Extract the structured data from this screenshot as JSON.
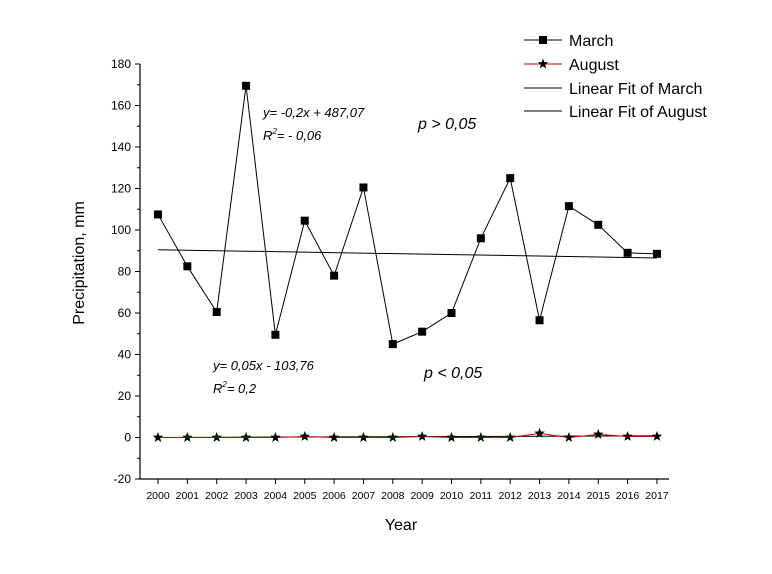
{
  "chart_data": {
    "type": "line",
    "title": "",
    "xlabel": "Year",
    "ylabel": "Precipitation,  mm",
    "ylim": [
      -20,
      180
    ],
    "yticks": [
      -20,
      0,
      20,
      40,
      60,
      80,
      100,
      120,
      140,
      160,
      180
    ],
    "x": [
      "2000",
      "2001",
      "2002",
      "2003",
      "2004",
      "2005",
      "2006",
      "2007",
      "2008",
      "2009",
      "2010",
      "2011",
      "2012",
      "2013",
      "2014",
      "2015",
      "2016",
      "2017"
    ],
    "grid": false,
    "legend_position": "top-right",
    "series": [
      {
        "name": "March",
        "marker": "square",
        "color": "#000000",
        "values": [
          107.5,
          82.5,
          60.5,
          169.5,
          49.5,
          104.5,
          78,
          120.5,
          45,
          51,
          60,
          96,
          125,
          56.5,
          111.5,
          102.5,
          89,
          88.5
        ]
      },
      {
        "name": "August",
        "marker": "star",
        "color": "#cc0000",
        "values": [
          0,
          0,
          0,
          0,
          0,
          0.5,
          0,
          0,
          0,
          0.5,
          0,
          0,
          0,
          2,
          0,
          1.5,
          0.5,
          0.5
        ]
      }
    ],
    "fits": [
      {
        "name": "Linear Fit of March",
        "y_start": 90.5,
        "y_end": 86.5
      },
      {
        "name": "Linear Fit of August",
        "y_start": 0,
        "y_end": 0.8
      }
    ],
    "annotations": {
      "march_eq": "y= -0,2x + 487,07",
      "march_r2_prefix": "R",
      "march_r2_suffix": "= - 0,06",
      "august_eq": "y= 0,05x - 103,76",
      "august_r2_prefix": "R",
      "august_r2_suffix": "= 0,2",
      "r2_exponent": "2",
      "p_upper": "p > 0,05",
      "p_lower": "p < 0,05"
    }
  }
}
